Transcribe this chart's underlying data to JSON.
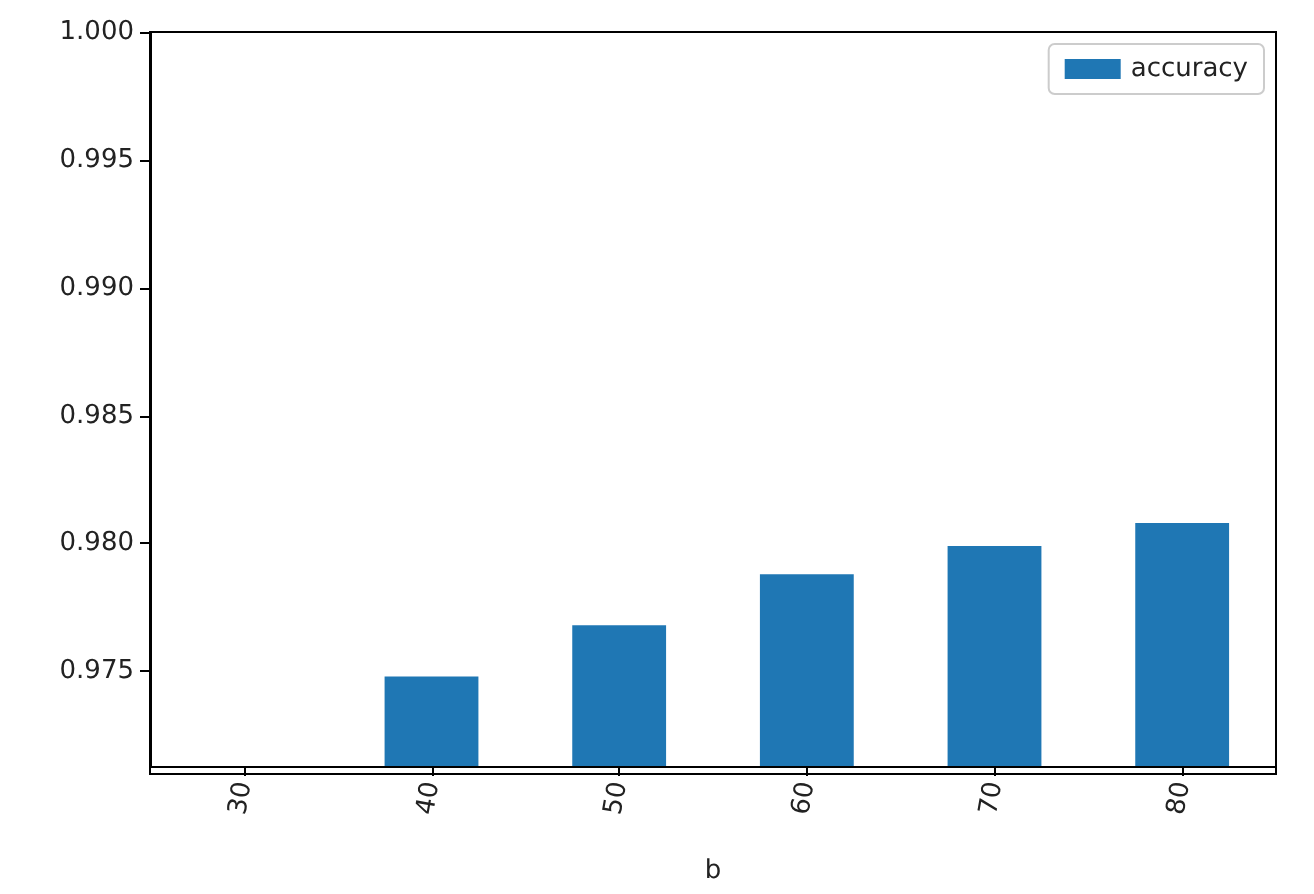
{
  "chart_data": {
    "type": "bar",
    "xlabel": "b",
    "categories": [
      "30",
      "40",
      "50",
      "60",
      "70",
      "80"
    ],
    "series": [
      {
        "name": "accuracy",
        "color": "#1f77b4",
        "values": [
          null,
          0.9748,
          0.9768,
          0.9788,
          0.9799,
          0.9808
        ]
      }
    ],
    "ylim": [
      0.9713,
      1.0
    ],
    "yticks": [
      {
        "value": 0.975,
        "label": "0.975"
      },
      {
        "value": 0.98,
        "label": "0.980"
      },
      {
        "value": 0.985,
        "label": "0.985"
      },
      {
        "value": 0.99,
        "label": "0.990"
      },
      {
        "value": 0.995,
        "label": "0.995"
      },
      {
        "value": 1.0,
        "label": "1.000"
      }
    ],
    "grid": false,
    "legend": "top right"
  }
}
